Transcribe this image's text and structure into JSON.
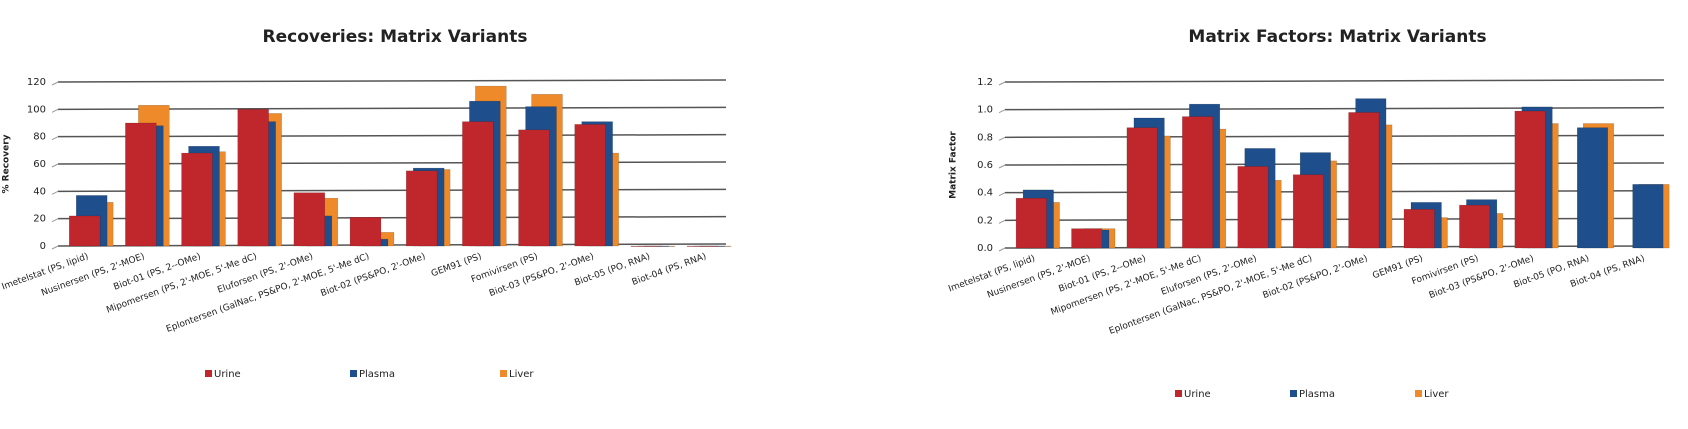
{
  "chart_data": [
    {
      "type": "bar",
      "title": "Recoveries: Matrix Variants",
      "y_label": "% Recovery",
      "categories": [
        "Imetelstat (PS, lipid)",
        "Nusinersen (PS, 2'-MOE)",
        "Biot-01 (PS, 2--OMe)",
        "Mipomersen (PS, 2'-MOE, 5'-Me dC)",
        "Eluforsen (PS,  2'-OMe)",
        "Eplontersen (GalNac, PS&PO, 2'-MOE, 5'-Me dC)",
        "Biot-02 (PS&PO, 2'-OMe)",
        "GEM91 (PS)",
        "Fomivirsen (PS)",
        "Biot-03 (PS&PO, 2'-OMe)",
        "Biot-05 (PO, RNA)",
        "Biot-04 (PS, RNA)"
      ],
      "series": [
        {
          "name": "Urine",
          "color": "#c0272d",
          "values": [
            22,
            90,
            68,
            100,
            39,
            21,
            55,
            91,
            85,
            89,
            0,
            0
          ]
        },
        {
          "name": "Plasma",
          "color": "#1f4e8c",
          "values": [
            37,
            88,
            73,
            91,
            22,
            5,
            57,
            106,
            102,
            91,
            0,
            0
          ]
        },
        {
          "name": "Liver",
          "color": "#ee8a2a",
          "values": [
            32,
            103,
            69,
            97,
            35,
            10,
            56,
            117,
            111,
            68,
            0,
            0
          ]
        }
      ],
      "ylim": [
        0,
        120
      ],
      "yticks": [
        0,
        20,
        40,
        60,
        80,
        100,
        120
      ],
      "grid": true
    },
    {
      "type": "bar",
      "title": "Matrix Factors: Matrix Variants",
      "y_label": "Matrix Factor",
      "categories": [
        "Imetelstat (PS, lipid)",
        "Nusinersen (PS, 2'-MOE)",
        "Biot-01 (PS, 2--OMe)",
        "Mipomersen (PS, 2'-MOE, 5'-Me dC)",
        "Eluforsen (PS,  2'-OMe)",
        "Eplontersen (GalNac, PS&PO, 2'-MOE, 5'-Me dC)",
        "Biot-02 (PS&PO, 2'-OMe)",
        "GEM91 (PS)",
        "Fomivirsen (PS)",
        "Biot-03 (PS&PO, 2'-OMe)",
        "Biot-05 (PO, RNA)",
        "Biot-04 (PS, RNA)"
      ],
      "series": [
        {
          "name": "Urine",
          "color": "#c0272d",
          "values": [
            0.36,
            0.14,
            0.87,
            0.95,
            0.59,
            0.53,
            0.98,
            0.28,
            0.31,
            0.99,
            null,
            null
          ]
        },
        {
          "name": "Plasma",
          "color": "#1f4e8c",
          "values": [
            0.42,
            0.13,
            0.94,
            1.04,
            0.72,
            0.69,
            1.08,
            0.33,
            0.35,
            1.02,
            0.87,
            0.46
          ]
        },
        {
          "name": "Liver",
          "color": "#ee8a2a",
          "values": [
            0.33,
            0.14,
            0.81,
            0.86,
            0.49,
            0.63,
            0.89,
            0.22,
            0.25,
            0.9,
            0.9,
            0.46
          ]
        }
      ],
      "ylim": [
        0,
        1.2
      ],
      "yticks": [
        {
          "value": 0,
          "label": "0.0"
        },
        0.2,
        0.4,
        0.6,
        0.8,
        {
          "value": 1,
          "label": "1.0"
        },
        1.2
      ],
      "grid": true
    }
  ]
}
